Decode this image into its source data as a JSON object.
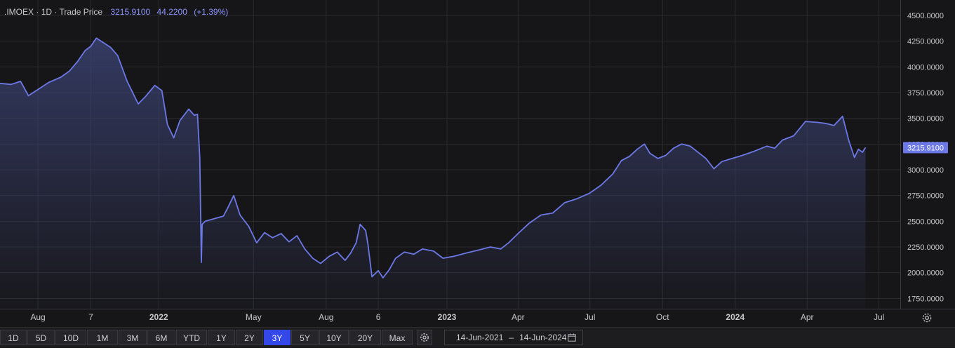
{
  "header": {
    "symbol": ".IMOEX",
    "interval": "1D",
    "price_type": "Trade Price",
    "last_value": "3215.9100",
    "change": "44.2200",
    "change_pct": "(+1.39%)",
    "separator": "·"
  },
  "toolbar": {
    "ranges": [
      "1D",
      "5D",
      "10D",
      "1M",
      "3M",
      "6M",
      "YTD",
      "1Y",
      "2Y",
      "3Y",
      "5Y",
      "10Y",
      "20Y",
      "Max"
    ],
    "active_range": "3Y",
    "date_from": "14-Jun-2021",
    "date_to": "14-Jun-2024",
    "date_separator": "–",
    "icons": {
      "settings": "gear-icon",
      "calendar": "calendar-icon",
      "chart_settings": "settings-icon"
    }
  },
  "colors": {
    "background": "#161618",
    "line": "#6c78e6",
    "fill_top": "#39406e",
    "grid": "#2b2b30",
    "axis_text": "#c8c8cc",
    "accent": "#3447e8"
  },
  "chart_data": {
    "type": "area",
    "title": ".IMOEX · 1D · Trade Price",
    "xlabel": "",
    "ylabel": "",
    "ylim": [
      1650,
      4650
    ],
    "grid": true,
    "y_ticks": [
      "4500.0000",
      "4250.0000",
      "4000.0000",
      "3750.0000",
      "3500.0000",
      "3250.0000",
      "3000.0000",
      "2750.0000",
      "2500.0000",
      "2250.0000",
      "2000.0000",
      "1750.0000"
    ],
    "y_tick_values": [
      4500,
      4250,
      4000,
      3750,
      3500,
      3250,
      3000,
      2750,
      2500,
      2250,
      2000,
      1750
    ],
    "x_ticks": [
      {
        "label": "Aug",
        "date": "2021-08-01"
      },
      {
        "label": "7",
        "date": "2021-10-07"
      },
      {
        "label": "2022",
        "date": "2022-01-01",
        "bold": true
      },
      {
        "label": "May",
        "date": "2022-05-01"
      },
      {
        "label": "Aug",
        "date": "2022-08-01"
      },
      {
        "label": "6",
        "date": "2022-10-06"
      },
      {
        "label": "2023",
        "date": "2023-01-01",
        "bold": true
      },
      {
        "label": "Apr",
        "date": "2023-04-01"
      },
      {
        "label": "Jul",
        "date": "2023-07-01"
      },
      {
        "label": "Oct",
        "date": "2023-10-01"
      },
      {
        "label": "2024",
        "date": "2024-01-01",
        "bold": true
      },
      {
        "label": "Apr",
        "date": "2024-04-01"
      },
      {
        "label": "Jul",
        "date": "2024-07-01"
      }
    ],
    "x_range": [
      "2021-06-14",
      "2024-07-28"
    ],
    "last_price_label": "3215.9100",
    "last_price": 3215.91,
    "series": [
      {
        "points": [
          [
            "2021-06-14",
            3840
          ],
          [
            "2021-06-28",
            3830
          ],
          [
            "2021-07-10",
            3860
          ],
          [
            "2021-07-20",
            3720
          ],
          [
            "2021-08-01",
            3780
          ],
          [
            "2021-08-15",
            3850
          ],
          [
            "2021-08-30",
            3900
          ],
          [
            "2021-09-10",
            3960
          ],
          [
            "2021-09-20",
            4050
          ],
          [
            "2021-09-30",
            4160
          ],
          [
            "2021-10-07",
            4200
          ],
          [
            "2021-10-14",
            4280
          ],
          [
            "2021-10-22",
            4240
          ],
          [
            "2021-11-01",
            4190
          ],
          [
            "2021-11-10",
            4110
          ],
          [
            "2021-11-22",
            3860
          ],
          [
            "2021-12-06",
            3640
          ],
          [
            "2021-12-15",
            3710
          ],
          [
            "2021-12-27",
            3820
          ],
          [
            "2022-01-05",
            3770
          ],
          [
            "2022-01-12",
            3440
          ],
          [
            "2022-01-20",
            3310
          ],
          [
            "2022-01-28",
            3480
          ],
          [
            "2022-02-08",
            3590
          ],
          [
            "2022-02-15",
            3530
          ],
          [
            "2022-02-19",
            3540
          ],
          [
            "2022-02-22",
            3120
          ],
          [
            "2022-02-24",
            2100
          ],
          [
            "2022-02-25",
            2470
          ],
          [
            "2022-03-01",
            2500
          ],
          [
            "2022-03-24",
            2550
          ],
          [
            "2022-03-30",
            2640
          ],
          [
            "2022-04-06",
            2750
          ],
          [
            "2022-04-14",
            2560
          ],
          [
            "2022-04-25",
            2450
          ],
          [
            "2022-05-05",
            2290
          ],
          [
            "2022-05-15",
            2390
          ],
          [
            "2022-05-25",
            2340
          ],
          [
            "2022-06-05",
            2380
          ],
          [
            "2022-06-15",
            2300
          ],
          [
            "2022-06-25",
            2360
          ],
          [
            "2022-07-05",
            2230
          ],
          [
            "2022-07-15",
            2140
          ],
          [
            "2022-07-25",
            2090
          ],
          [
            "2022-08-05",
            2160
          ],
          [
            "2022-08-15",
            2200
          ],
          [
            "2022-08-25",
            2120
          ],
          [
            "2022-09-01",
            2190
          ],
          [
            "2022-09-08",
            2290
          ],
          [
            "2022-09-13",
            2470
          ],
          [
            "2022-09-20",
            2410
          ],
          [
            "2022-09-23",
            2270
          ],
          [
            "2022-09-28",
            1960
          ],
          [
            "2022-10-06",
            2020
          ],
          [
            "2022-10-12",
            1950
          ],
          [
            "2022-10-20",
            2030
          ],
          [
            "2022-10-28",
            2140
          ],
          [
            "2022-11-08",
            2200
          ],
          [
            "2022-11-20",
            2180
          ],
          [
            "2022-12-01",
            2230
          ],
          [
            "2022-12-15",
            2210
          ],
          [
            "2022-12-27",
            2140
          ],
          [
            "2023-01-10",
            2160
          ],
          [
            "2023-01-25",
            2190
          ],
          [
            "2023-02-10",
            2220
          ],
          [
            "2023-02-25",
            2250
          ],
          [
            "2023-03-10",
            2230
          ],
          [
            "2023-03-20",
            2290
          ],
          [
            "2023-04-01",
            2380
          ],
          [
            "2023-04-15",
            2480
          ],
          [
            "2023-04-30",
            2560
          ],
          [
            "2023-05-15",
            2580
          ],
          [
            "2023-05-30",
            2680
          ],
          [
            "2023-06-15",
            2720
          ],
          [
            "2023-06-30",
            2770
          ],
          [
            "2023-07-15",
            2850
          ],
          [
            "2023-07-30",
            2960
          ],
          [
            "2023-08-10",
            3090
          ],
          [
            "2023-08-20",
            3130
          ],
          [
            "2023-08-30",
            3200
          ],
          [
            "2023-09-08",
            3250
          ],
          [
            "2023-09-15",
            3160
          ],
          [
            "2023-09-25",
            3110
          ],
          [
            "2023-10-05",
            3140
          ],
          [
            "2023-10-15",
            3210
          ],
          [
            "2023-10-25",
            3250
          ],
          [
            "2023-11-05",
            3230
          ],
          [
            "2023-11-15",
            3170
          ],
          [
            "2023-11-25",
            3110
          ],
          [
            "2023-12-05",
            3010
          ],
          [
            "2023-12-15",
            3080
          ],
          [
            "2023-12-28",
            3110
          ],
          [
            "2024-01-10",
            3140
          ],
          [
            "2024-01-25",
            3180
          ],
          [
            "2024-02-10",
            3230
          ],
          [
            "2024-02-20",
            3210
          ],
          [
            "2024-03-01",
            3290
          ],
          [
            "2024-03-15",
            3330
          ],
          [
            "2024-03-30",
            3470
          ],
          [
            "2024-04-15",
            3460
          ],
          [
            "2024-04-25",
            3450
          ],
          [
            "2024-05-05",
            3430
          ],
          [
            "2024-05-16",
            3520
          ],
          [
            "2024-05-24",
            3280
          ],
          [
            "2024-05-31",
            3120
          ],
          [
            "2024-06-05",
            3200
          ],
          [
            "2024-06-10",
            3170
          ],
          [
            "2024-06-14",
            3215.91
          ]
        ]
      }
    ]
  }
}
